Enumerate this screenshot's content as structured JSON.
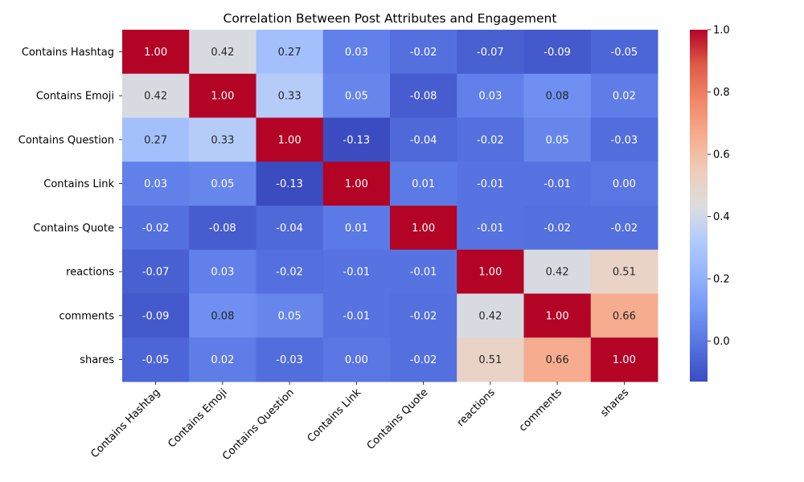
{
  "chart_data": {
    "type": "heatmap",
    "title": "Correlation Between Post Attributes and Engagement",
    "xlabel": "",
    "ylabel": "",
    "rows": [
      "Contains Hashtag",
      "Contains Emoji",
      "Contains Question",
      "Contains Link",
      "Contains Quote",
      "reactions",
      "comments",
      "shares"
    ],
    "columns": [
      "Contains Hashtag",
      "Contains Emoji",
      "Contains Question",
      "Contains Link",
      "Contains Quote",
      "reactions",
      "comments",
      "shares"
    ],
    "values": [
      [
        1.0,
        0.42,
        0.27,
        0.03,
        -0.02,
        -0.07,
        -0.09,
        -0.05
      ],
      [
        0.42,
        1.0,
        0.33,
        0.05,
        -0.08,
        0.03,
        0.08,
        0.02
      ],
      [
        0.27,
        0.33,
        1.0,
        -0.13,
        -0.04,
        -0.02,
        0.05,
        -0.03
      ],
      [
        0.03,
        0.05,
        -0.13,
        1.0,
        0.01,
        -0.01,
        -0.01,
        0.0
      ],
      [
        -0.02,
        -0.08,
        -0.04,
        0.01,
        1.0,
        -0.01,
        -0.02,
        -0.02
      ],
      [
        -0.07,
        0.03,
        -0.02,
        -0.01,
        -0.01,
        1.0,
        0.42,
        0.51
      ],
      [
        -0.09,
        0.08,
        0.05,
        -0.01,
        -0.02,
        0.42,
        1.0,
        0.66
      ],
      [
        -0.05,
        0.02,
        -0.03,
        0.0,
        -0.02,
        0.51,
        0.66,
        1.0
      ]
    ],
    "value_format": "2 decimals",
    "colormap": "coolwarm",
    "color_range": [
      -0.13,
      1.0
    ],
    "colorbar": {
      "ticks": [
        "1.0",
        "0.8",
        "0.6",
        "0.4",
        "0.2",
        "0.0"
      ],
      "tick_values": [
        1.0,
        0.8,
        0.6,
        0.4,
        0.2,
        0.0
      ],
      "placement": "right"
    },
    "x_tick_rotation_deg": 45,
    "grid": false
  },
  "colors": {
    "low": "#3b4cc0",
    "mid": "#dddddd",
    "high": "#b40426",
    "text_on_light": "#262626",
    "text_on_dark": "#ffffff"
  }
}
